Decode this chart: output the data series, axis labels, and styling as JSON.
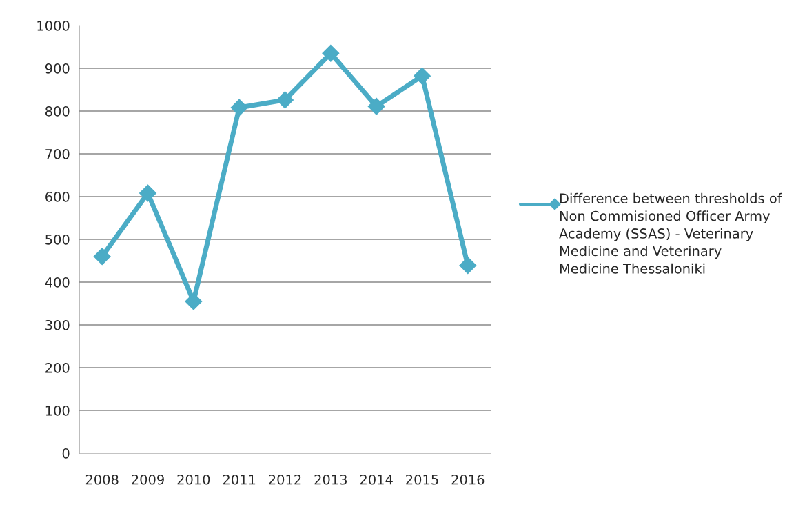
{
  "chart_data": {
    "type": "line",
    "categories": [
      "2008",
      "2009",
      "2010",
      "2011",
      "2012",
      "2013",
      "2014",
      "2015",
      "2016"
    ],
    "series": [
      {
        "name": "Difference between thresholds of Non Commisioned Officer Army Academy (SSAS) - Veterinary Medicine and Veterinary Medicine Thessaloniki",
        "color": "#4bacc6",
        "values": [
          460,
          608,
          355,
          808,
          826,
          935,
          811,
          882,
          439
        ]
      }
    ],
    "ylim": [
      0,
      1000
    ],
    "yticks": [
      0,
      100,
      200,
      300,
      400,
      500,
      600,
      700,
      800,
      900,
      1000
    ],
    "grid": "y",
    "legend": "right",
    "marker": "diamond",
    "line_style": "solid"
  }
}
